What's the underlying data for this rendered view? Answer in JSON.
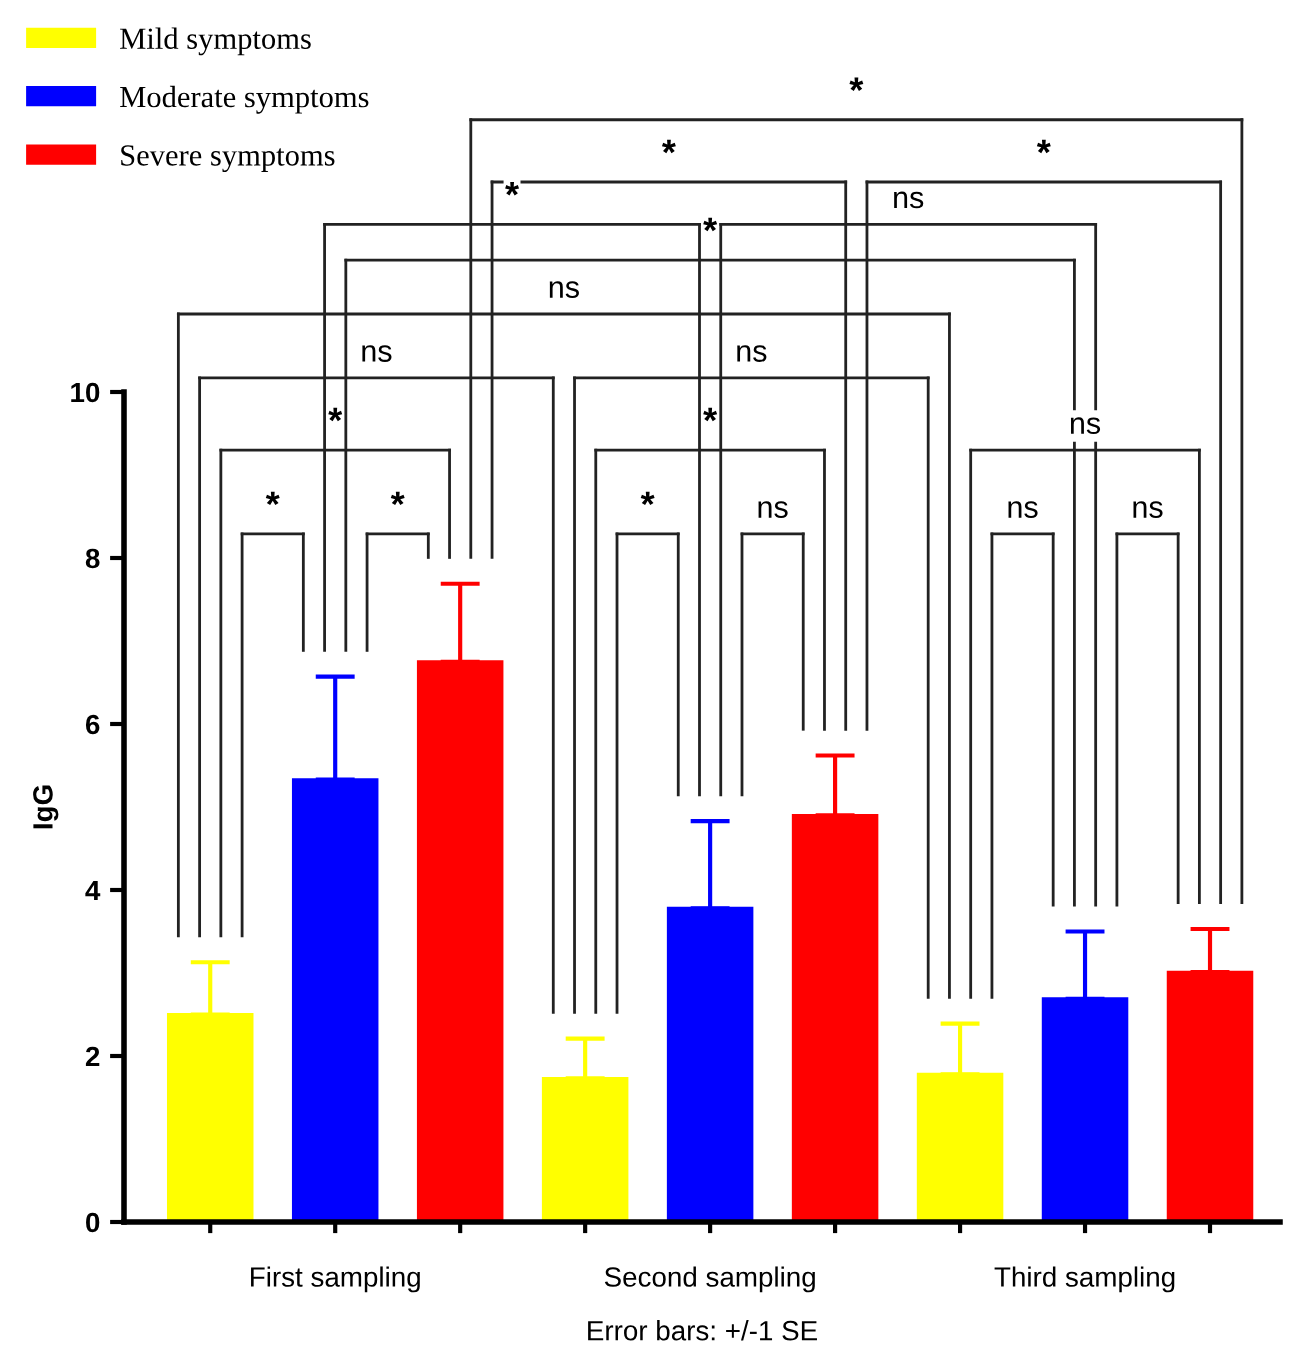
{
  "chart_data": {
    "type": "bar",
    "ylabel": "IgG",
    "xlabel": "Error bars: +/-1 SE",
    "categories": [
      "First sampling",
      "Second sampling",
      "Third sampling"
    ],
    "series": [
      {
        "name": "Mild symptoms",
        "color": "#ffff00",
        "values": [
          2.5,
          1.73,
          1.78
        ],
        "errors": [
          0.63,
          0.48,
          0.61
        ]
      },
      {
        "name": "Moderate symptoms",
        "color": "#0000ff",
        "values": [
          5.33,
          3.78,
          2.69
        ],
        "errors": [
          1.24,
          1.05,
          0.81
        ]
      },
      {
        "name": "Severe symptoms",
        "color": "#ff0000",
        "values": [
          6.75,
          4.9,
          3.01
        ],
        "errors": [
          0.94,
          0.72,
          0.52
        ]
      }
    ],
    "ylim": [
      0,
      10
    ],
    "yticks": [
      0,
      2,
      4,
      6,
      8,
      10
    ],
    "grid": false,
    "legend": "top left",
    "annotations": [
      "*",
      "*",
      "*",
      "ns",
      "ns",
      "*",
      "*",
      "*",
      "*",
      "ns",
      "*",
      "*",
      "ns",
      "*",
      "ns",
      "ns",
      "ns",
      "ns"
    ]
  }
}
